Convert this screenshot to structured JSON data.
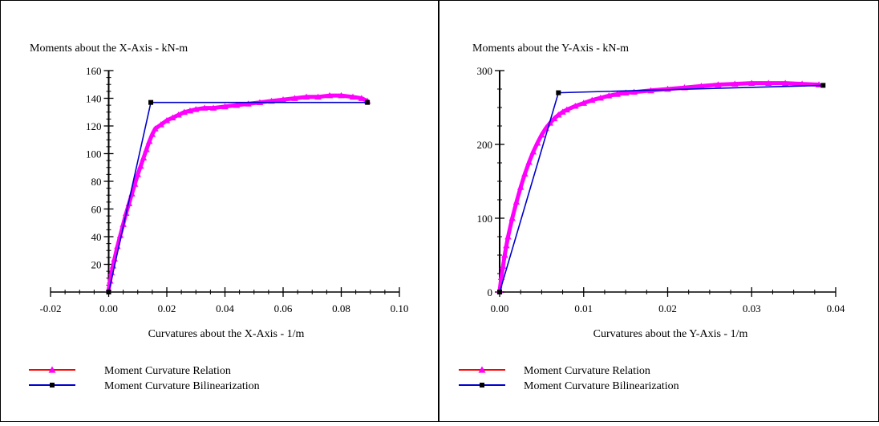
{
  "chart_data": [
    {
      "type": "line",
      "title": "",
      "ylabel": "Moments about the X-Axis - kN-m",
      "xlabel": "Curvatures about the X-Axis - 1/m",
      "xlim": [
        -0.02,
        0.1
      ],
      "ylim": [
        0,
        160
      ],
      "x_ticks": [
        -0.02,
        0.0,
        0.02,
        0.04,
        0.06,
        0.08,
        0.1
      ],
      "x_tick_labels": [
        "-0.02",
        "0.00",
        "0.02",
        "0.04",
        "0.06",
        "0.08",
        "0.10"
      ],
      "y_ticks": [
        20,
        40,
        60,
        80,
        100,
        120,
        140,
        160
      ],
      "y_tick_labels": [
        "20",
        "40",
        "60",
        "80",
        "100",
        "120",
        "140",
        "160"
      ],
      "legend_position": "bottom-left",
      "series": [
        {
          "name": "Moment Curvature Relation",
          "color": "#ff00ff",
          "line_color": "#ff0000",
          "marker": "triangle",
          "x": [
            0.0,
            0.0005,
            0.001,
            0.0015,
            0.002,
            0.003,
            0.004,
            0.005,
            0.006,
            0.007,
            0.008,
            0.009,
            0.01,
            0.011,
            0.012,
            0.013,
            0.014,
            0.015,
            0.016,
            0.018,
            0.02,
            0.022,
            0.024,
            0.026,
            0.028,
            0.03,
            0.033,
            0.036,
            0.04,
            0.044,
            0.048,
            0.052,
            0.056,
            0.06,
            0.064,
            0.068,
            0.072,
            0.076,
            0.08,
            0.084,
            0.087,
            0.089
          ],
          "y": [
            2,
            8,
            14,
            19,
            24,
            33,
            41,
            49,
            57,
            64,
            71,
            78,
            85,
            91,
            97,
            103,
            109,
            114,
            118,
            121,
            124,
            126,
            128,
            130,
            131,
            132,
            133,
            133,
            134,
            135,
            136,
            137,
            138,
            139,
            140,
            141,
            141,
            142,
            142,
            141,
            140,
            138
          ]
        },
        {
          "name": "Moment Curvature Bilinearization",
          "color": "#0000cc",
          "marker": "square",
          "x": [
            0.0,
            0.0145,
            0.089
          ],
          "y": [
            0,
            137,
            137
          ]
        }
      ]
    },
    {
      "type": "line",
      "title": "",
      "ylabel": "Moments about the Y-Axis - kN-m",
      "xlabel": "Curvatures about the Y-Axis - 1/m",
      "xlim": [
        0.0,
        0.04
      ],
      "ylim": [
        0,
        300
      ],
      "x_ticks": [
        0.0,
        0.01,
        0.02,
        0.03,
        0.04
      ],
      "x_tick_labels": [
        "0.00",
        "0.01",
        "0.02",
        "0.03",
        "0.04"
      ],
      "y_ticks": [
        0,
        100,
        200,
        300
      ],
      "y_tick_labels": [
        "0",
        "100",
        "200",
        "300"
      ],
      "legend_position": "bottom-left",
      "series": [
        {
          "name": "Moment Curvature Relation",
          "color": "#ff00ff",
          "line_color": "#ff0000",
          "marker": "triangle",
          "x": [
            0.0,
            0.0002,
            0.0004,
            0.0006,
            0.0008,
            0.001,
            0.0015,
            0.002,
            0.0025,
            0.003,
            0.0035,
            0.004,
            0.0045,
            0.005,
            0.0055,
            0.006,
            0.0065,
            0.007,
            0.0075,
            0.008,
            0.009,
            0.01,
            0.011,
            0.012,
            0.013,
            0.014,
            0.015,
            0.016,
            0.018,
            0.02,
            0.022,
            0.024,
            0.026,
            0.028,
            0.03,
            0.032,
            0.034,
            0.036,
            0.038
          ],
          "y": [
            2,
            20,
            35,
            50,
            63,
            75,
            100,
            122,
            142,
            160,
            176,
            190,
            202,
            213,
            222,
            229,
            235,
            240,
            244,
            247,
            252,
            256,
            260,
            263,
            266,
            268,
            270,
            271,
            273,
            275,
            277,
            279,
            281,
            282,
            283,
            283,
            283,
            282,
            281
          ]
        },
        {
          "name": "Moment Curvature Bilinearization",
          "color": "#0000cc",
          "marker": "square",
          "x": [
            0.0,
            0.007,
            0.0385
          ],
          "y": [
            0,
            270,
            280
          ]
        }
      ]
    }
  ]
}
